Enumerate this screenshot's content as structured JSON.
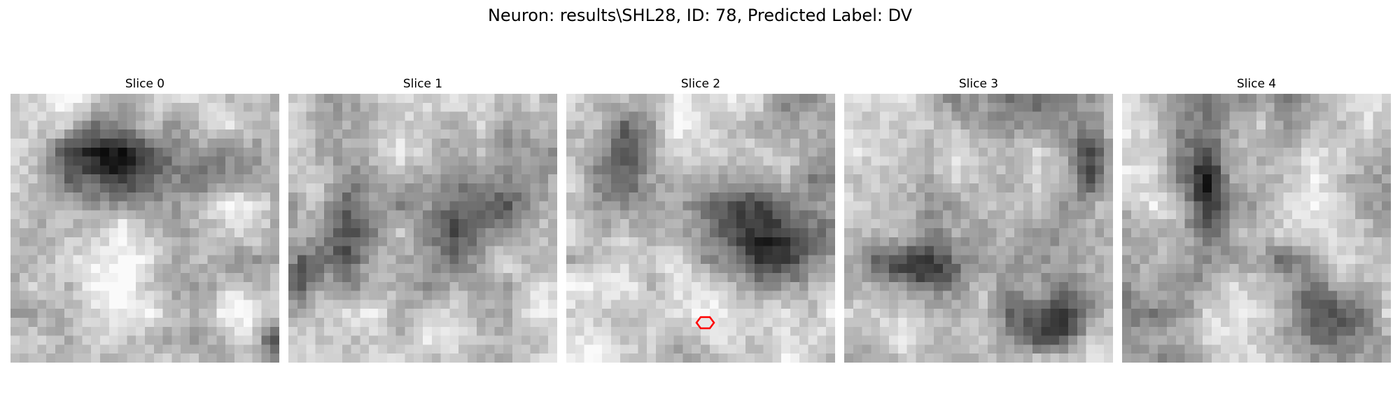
{
  "figure": {
    "title": "Neuron: results\\SHL28, ID: 78, Predicted Label: DV"
  },
  "slices": [
    {
      "label": "Slice 0",
      "image": "grayscale electron-microscopy crop, dark blob upper-center",
      "has_marker": false
    },
    {
      "label": "Slice 1",
      "image": "grayscale electron-microscopy crop, dark diagonal band and dark region right-center",
      "has_marker": false
    },
    {
      "label": "Slice 2",
      "image": "grayscale electron-microscopy crop, dark cell body right-center",
      "has_marker": true
    },
    {
      "label": "Slice 3",
      "image": "grayscale electron-microscopy crop, dark streak lower-left",
      "has_marker": false
    },
    {
      "label": "Slice 4",
      "image": "grayscale electron-microscopy crop, dark blob upper-left-center",
      "has_marker": false
    }
  ],
  "marker": {
    "shape": "hexagon-outline",
    "color": "#ff0000"
  }
}
